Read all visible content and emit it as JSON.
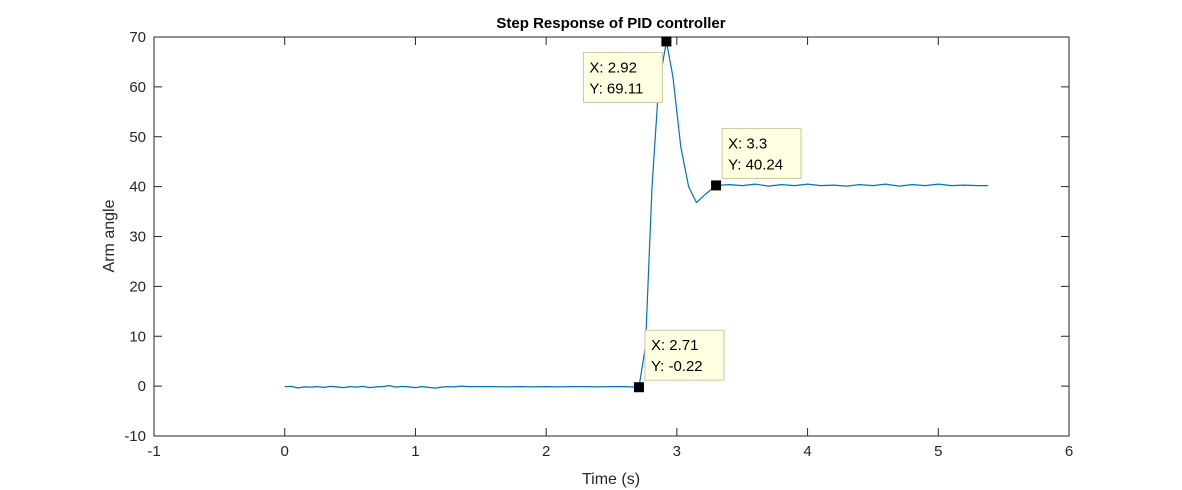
{
  "chart_data": {
    "type": "line",
    "title": "Step Response of PID controller",
    "xlabel": "Time (s)",
    "ylabel": "Arm angle",
    "xlim": [
      -1,
      6
    ],
    "ylim": [
      -10,
      70
    ],
    "xticks": [
      "-1",
      "0",
      "1",
      "2",
      "3",
      "4",
      "5",
      "6"
    ],
    "yticks": [
      "-10",
      "0",
      "10",
      "20",
      "30",
      "40",
      "50",
      "60",
      "70"
    ],
    "grid": false,
    "series": [
      {
        "color": "#0072BD",
        "x": [
          0,
          0.05,
          0.1,
          0.15,
          0.2,
          0.25,
          0.3,
          0.35,
          0.4,
          0.45,
          0.5,
          0.55,
          0.6,
          0.65,
          0.7,
          0.75,
          0.8,
          0.85,
          0.9,
          0.95,
          1.0,
          1.05,
          1.1,
          1.15,
          1.2,
          1.25,
          1.3,
          1.35,
          1.4,
          1.5,
          1.6,
          1.7,
          1.8,
          1.9,
          2.0,
          2.1,
          2.2,
          2.3,
          2.4,
          2.5,
          2.6,
          2.71,
          2.76,
          2.81,
          2.86,
          2.92,
          2.97,
          3.03,
          3.09,
          3.15,
          3.22,
          3.3,
          3.4,
          3.5,
          3.6,
          3.7,
          3.8,
          3.9,
          4.0,
          4.1,
          4.2,
          4.3,
          4.4,
          4.5,
          4.6,
          4.7,
          4.8,
          4.9,
          5.0,
          5.1,
          5.2,
          5.3,
          5.38
        ],
        "y": [
          -0.1,
          -0.05,
          -0.35,
          -0.15,
          -0.2,
          -0.1,
          -0.25,
          -0.05,
          -0.15,
          -0.3,
          -0.1,
          -0.2,
          -0.05,
          -0.3,
          -0.15,
          -0.1,
          0.1,
          -0.2,
          -0.05,
          -0.15,
          -0.3,
          -0.1,
          -0.25,
          -0.4,
          -0.2,
          -0.1,
          -0.15,
          0.0,
          -0.1,
          -0.1,
          -0.1,
          -0.15,
          -0.1,
          -0.15,
          -0.1,
          -0.15,
          -0.1,
          -0.1,
          -0.15,
          -0.1,
          -0.1,
          -0.22,
          8.0,
          40.0,
          60.0,
          69.11,
          62.0,
          48.0,
          40.0,
          36.8,
          38.5,
          40.24,
          40.4,
          40.2,
          40.5,
          40.1,
          40.4,
          40.2,
          40.5,
          40.2,
          40.3,
          40.1,
          40.4,
          40.2,
          40.5,
          40.1,
          40.4,
          40.2,
          40.5,
          40.2,
          40.3,
          40.2,
          40.2
        ]
      }
    ],
    "datatips": [
      {
        "x": 2.92,
        "y": 69.11,
        "label_x": "X: 2.92",
        "label_y": "Y: 69.11",
        "placement": "bottom-left"
      },
      {
        "x": 3.3,
        "y": 40.24,
        "label_x": "X: 3.3",
        "label_y": "Y: 40.24",
        "placement": "top-right"
      },
      {
        "x": 2.71,
        "y": -0.22,
        "label_x": "X: 2.71",
        "label_y": "Y: -0.22",
        "placement": "top-right"
      }
    ]
  },
  "colors": {
    "axis": "#262626",
    "datatip_fill": "#FFFFE1",
    "datatip_border": "#C8C8A0",
    "marker": "#000000"
  }
}
